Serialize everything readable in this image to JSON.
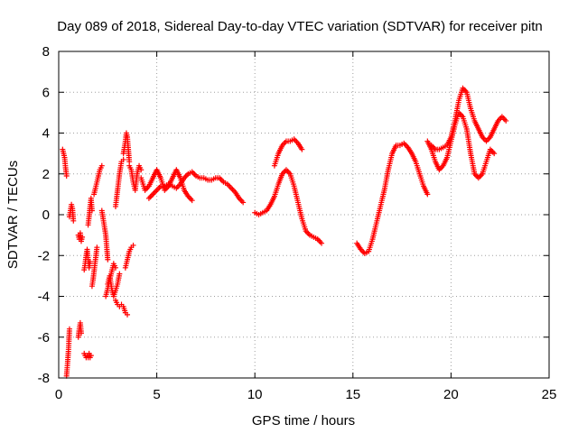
{
  "chart_data": {
    "type": "scatter",
    "title": "Day 089 of 2018, Sidereal Day-to-day VTEC variation (SDTVAR) for receiver pitn",
    "xlabel": "GPS time / hours",
    "ylabel": "SDTVAR / TECUs",
    "xlim": [
      0,
      25
    ],
    "ylim": [
      -8,
      8
    ],
    "xticks": [
      0,
      5,
      10,
      15,
      20,
      25
    ],
    "yticks": [
      -8,
      -6,
      -4,
      -2,
      0,
      2,
      4,
      6,
      8
    ],
    "xtick_labels": [
      "0",
      "5",
      "10",
      "15",
      "20",
      "25"
    ],
    "ytick_labels": [
      "-8",
      "-6",
      "-4",
      "-2",
      "0",
      "2",
      "4",
      "6",
      "8"
    ],
    "grid": true,
    "marker": "+",
    "color": "#ff0000",
    "segments": [
      {
        "x": [
          0.2,
          0.3,
          0.35,
          0.4
        ],
        "y": [
          3.2,
          2.8,
          2.3,
          1.9
        ]
      },
      {
        "x": [
          0.4,
          0.45,
          0.5,
          0.55
        ],
        "y": [
          -7.9,
          -7.3,
          -6.6,
          -5.6
        ]
      },
      {
        "x": [
          0.55,
          0.6,
          0.65,
          0.7,
          0.75
        ],
        "y": [
          -0.1,
          0.2,
          0.5,
          0.3,
          -0.3
        ]
      },
      {
        "x": [
          1.0,
          1.05,
          1.1,
          1.15
        ],
        "y": [
          -6.0,
          -5.6,
          -5.3,
          -5.8
        ]
      },
      {
        "x": [
          1.0,
          1.05,
          1.1,
          1.15,
          1.2
        ],
        "y": [
          -1.0,
          -1.2,
          -0.9,
          -1.3,
          -1.1
        ]
      },
      {
        "x": [
          1.3,
          1.35,
          1.4,
          1.45,
          1.5,
          1.55,
          1.6,
          1.65
        ],
        "y": [
          -6.8,
          -6.9,
          -7.0,
          -6.9,
          -7.0,
          -6.8,
          -7.0,
          -6.9
        ]
      },
      {
        "x": [
          1.3,
          1.35,
          1.4,
          1.45,
          1.5,
          1.55,
          1.6
        ],
        "y": [
          -2.7,
          -2.4,
          -2.0,
          -1.7,
          -2.2,
          -2.6,
          -2.3
        ]
      },
      {
        "x": [
          1.5,
          1.55,
          1.6,
          1.65,
          1.7
        ],
        "y": [
          -0.5,
          -0.1,
          0.4,
          0.8,
          0.2
        ]
      },
      {
        "x": [
          1.7,
          1.75,
          1.8,
          1.85,
          1.9,
          1.95
        ],
        "y": [
          -3.5,
          -3.2,
          -2.8,
          -2.4,
          -2.0,
          -1.6
        ]
      },
      {
        "x": [
          1.8,
          1.9,
          2.0,
          2.1,
          2.2
        ],
        "y": [
          1.0,
          1.4,
          1.8,
          2.2,
          2.4
        ]
      },
      {
        "x": [
          2.2,
          2.3,
          2.4,
          2.45,
          2.5
        ],
        "y": [
          0.2,
          -0.4,
          -1.0,
          -1.6,
          -2.2
        ]
      },
      {
        "x": [
          2.4,
          2.5,
          2.6,
          2.7,
          2.8,
          2.9
        ],
        "y": [
          -4.0,
          -3.6,
          -3.2,
          -2.8,
          -2.4,
          -2.6
        ]
      },
      {
        "x": [
          2.5,
          2.6,
          2.7,
          2.8,
          2.9,
          3.0,
          3.1
        ],
        "y": [
          -3.4,
          -3.0,
          -3.6,
          -4.0,
          -3.7,
          -3.4,
          -2.9
        ]
      },
      {
        "x": [
          2.9,
          3.0,
          3.1,
          3.2,
          3.3,
          3.4,
          3.5
        ],
        "y": [
          -4.2,
          -4.4,
          -4.5,
          -4.4,
          -4.5,
          -4.8,
          -4.9
        ]
      },
      {
        "x": [
          2.9,
          3.0,
          3.1,
          3.2,
          3.3
        ],
        "y": [
          0.4,
          1.2,
          2.0,
          2.6,
          2.7
        ]
      },
      {
        "x": [
          3.3,
          3.4,
          3.45,
          3.5,
          3.55,
          3.6
        ],
        "y": [
          3.0,
          3.6,
          4.0,
          3.8,
          3.2,
          2.6
        ]
      },
      {
        "x": [
          3.4,
          3.5,
          3.6,
          3.7,
          3.8
        ],
        "y": [
          -2.6,
          -2.2,
          -1.8,
          -1.6,
          -1.5
        ]
      },
      {
        "x": [
          3.6,
          3.7,
          3.8,
          3.9,
          4.0,
          4.1,
          4.2
        ],
        "y": [
          2.4,
          2.2,
          1.6,
          1.2,
          2.0,
          2.4,
          2.2
        ]
      },
      {
        "x": [
          4.2,
          4.4,
          4.6,
          4.8,
          5.0,
          5.2,
          5.4,
          5.6,
          5.8,
          6.0,
          6.2,
          6.4,
          6.6,
          6.8
        ],
        "y": [
          1.8,
          1.2,
          1.4,
          1.8,
          2.2,
          1.8,
          1.2,
          1.4,
          1.8,
          2.2,
          1.8,
          1.2,
          0.9,
          0.7
        ]
      },
      {
        "x": [
          4.6,
          4.8,
          5.0,
          5.2,
          5.4,
          5.6,
          5.8,
          6.0,
          6.2,
          6.4,
          6.6,
          6.8,
          7.0,
          7.2,
          7.4,
          7.6,
          7.8,
          8.0,
          8.2,
          8.4,
          8.6,
          8.8,
          9.0,
          9.2,
          9.4
        ],
        "y": [
          0.8,
          1.0,
          1.2,
          1.4,
          1.4,
          1.5,
          1.4,
          1.3,
          1.5,
          1.8,
          2.0,
          2.1,
          1.9,
          1.8,
          1.8,
          1.7,
          1.7,
          1.8,
          1.8,
          1.6,
          1.5,
          1.3,
          1.1,
          0.8,
          0.6
        ]
      },
      {
        "x": [
          10.0,
          10.2,
          10.4,
          10.6,
          10.8,
          11.0,
          11.2,
          11.4,
          11.6,
          11.8,
          12.0,
          12.2,
          12.4,
          12.6,
          12.8,
          13.0,
          13.2,
          13.4
        ],
        "y": [
          0.1,
          0.0,
          0.1,
          0.2,
          0.5,
          0.9,
          1.5,
          2.0,
          2.2,
          2.0,
          1.4,
          0.6,
          -0.2,
          -0.8,
          -1.0,
          -1.1,
          -1.2,
          -1.4
        ]
      },
      {
        "x": [
          11.0,
          11.2,
          11.4,
          11.6,
          11.8,
          12.0,
          12.2,
          12.4
        ],
        "y": [
          2.4,
          3.0,
          3.4,
          3.6,
          3.6,
          3.7,
          3.5,
          3.2
        ]
      },
      {
        "x": [
          15.2,
          15.4,
          15.6,
          15.8,
          16.0,
          16.2,
          16.4,
          16.6,
          16.8,
          17.0,
          17.2,
          17.4,
          17.6,
          17.8,
          18.0,
          18.2,
          18.4,
          18.6,
          18.8
        ],
        "y": [
          -1.4,
          -1.7,
          -1.9,
          -1.8,
          -1.2,
          -0.4,
          0.4,
          1.2,
          2.2,
          3.0,
          3.4,
          3.4,
          3.5,
          3.3,
          3.0,
          2.6,
          2.0,
          1.4,
          1.0
        ]
      },
      {
        "x": [
          18.8,
          19.0,
          19.2,
          19.4,
          19.6,
          19.8,
          20.0,
          20.2,
          20.4,
          20.6,
          20.8,
          21.0,
          21.2,
          21.4,
          21.6,
          21.8,
          22.0,
          22.2
        ],
        "y": [
          3.6,
          3.2,
          2.6,
          2.2,
          2.4,
          2.8,
          3.6,
          4.4,
          5.0,
          4.8,
          4.2,
          3.0,
          2.0,
          1.8,
          2.0,
          2.6,
          3.2,
          3.0
        ]
      },
      {
        "x": [
          19.0,
          19.2,
          19.4,
          19.6,
          19.8,
          20.0,
          20.2,
          20.4,
          20.6,
          20.8,
          21.0,
          21.2,
          21.4,
          21.6,
          21.8,
          22.0,
          22.2,
          22.4,
          22.6,
          22.8
        ],
        "y": [
          3.4,
          3.2,
          3.2,
          3.3,
          3.4,
          3.8,
          4.6,
          5.6,
          6.2,
          6.0,
          5.2,
          4.6,
          4.2,
          3.8,
          3.6,
          3.8,
          4.2,
          4.6,
          4.8,
          4.6
        ]
      }
    ]
  }
}
